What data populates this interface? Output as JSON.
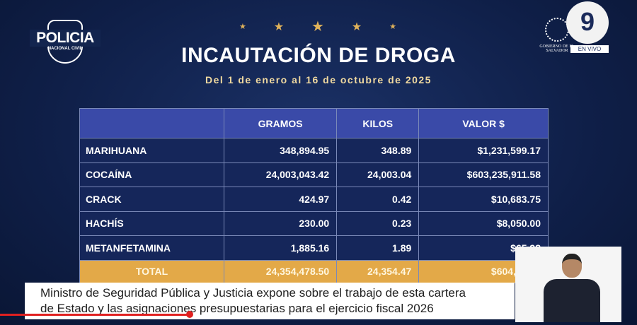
{
  "logo": {
    "name": "POLICIA",
    "subtitle": "NACIONAL CIVIL"
  },
  "header": {
    "title": "INCAUTACIÓN DE DROGA",
    "subtitle": "Del 1 de enero al 16 de octubre de 2025"
  },
  "gov_logo": "GOBIERNO DE EL SALVADOR",
  "channel": {
    "logo": "9",
    "live": "EN VIVO"
  },
  "table": {
    "headers": [
      "",
      "GRAMOS",
      "KILOS",
      "VALOR $"
    ],
    "rows": [
      [
        "MARIHUANA",
        "348,894.95",
        "348.89",
        "$1,231,599.17"
      ],
      [
        "COCAÍNA",
        "24,003,043.42",
        "24,003.04",
        "$603,235,911.58"
      ],
      [
        "CRACK",
        "424.97",
        "0.42",
        "$10,683.75"
      ],
      [
        "HACHÍS",
        "230.00",
        "0.23",
        "$8,050.00"
      ],
      [
        "METANFETAMINA",
        "1,885.16",
        "1.89",
        "$65,98"
      ]
    ],
    "total": [
      "TOTAL",
      "24,354,478.50",
      "24,354.47",
      "$604,552,2"
    ]
  },
  "caption": [
    "Ministro de Seguridad Pública y Justicia expone sobre el trabajo de esta cartera",
    "de Estado y las asignaciones presupuestarias para el ejercicio fiscal 2026"
  ],
  "progress": 0.3
}
